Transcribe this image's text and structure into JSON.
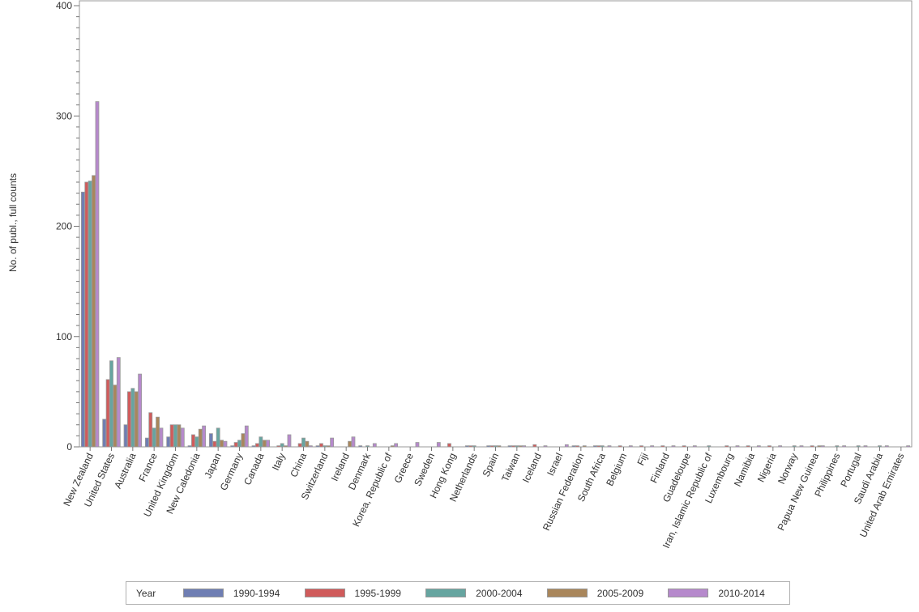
{
  "chart_data": {
    "type": "bar",
    "title": "",
    "xlabel": "",
    "ylabel": "No. of publ., full counts",
    "ylim": [
      0,
      400
    ],
    "yticks": [
      "0",
      "100",
      "200",
      "300",
      "400"
    ],
    "grid": false,
    "legend_title": "Year",
    "legend_position": "bottom",
    "categories": [
      "New Zealand",
      "United States",
      "Australia",
      "France",
      "United Kingdom",
      "New Caledonia",
      "Japan",
      "Germany",
      "Canada",
      "Italy",
      "China",
      "Switzerland",
      "Ireland",
      "Denmark",
      "Korea, Republic of",
      "Greece",
      "Sweden",
      "Hong Kong",
      "Netherlands",
      "Spain",
      "Taiwan",
      "Iceland",
      "Israel",
      "Russian Federation",
      "South Africa",
      "Belgium",
      "Fiji",
      "Finland",
      "Guadeloupe",
      "Iran, Islamic Republic of",
      "Luxembourg",
      "Namibia",
      "Nigeria",
      "Norway",
      "Papua New Guinea",
      "Philippines",
      "Portugal",
      "Saudi Arabia",
      "United Arab Emirates"
    ],
    "series": [
      {
        "name": "1990-1994",
        "color": "#6f7eb3",
        "values": [
          231,
          25,
          20,
          8,
          9,
          1,
          12,
          1,
          1,
          0,
          0,
          1,
          0,
          1,
          0,
          0,
          0,
          0,
          1,
          1,
          1,
          0,
          0,
          1,
          1,
          0,
          0,
          0,
          0,
          0,
          0,
          0,
          0,
          0,
          0,
          0,
          0,
          0,
          0
        ]
      },
      {
        "name": "1995-1999",
        "color": "#d05b5b",
        "values": [
          240,
          61,
          50,
          31,
          20,
          11,
          5,
          4,
          3,
          1,
          3,
          3,
          0,
          0,
          0,
          0,
          0,
          3,
          1,
          1,
          1,
          2,
          0,
          1,
          1,
          1,
          1,
          1,
          1,
          0,
          1,
          1,
          1,
          0,
          1,
          0,
          0,
          0,
          0
        ]
      },
      {
        "name": "2000-2004",
        "color": "#66a5a0",
        "values": [
          241,
          78,
          53,
          17,
          20,
          9,
          17,
          6,
          9,
          3,
          8,
          1,
          0,
          1,
          0,
          0,
          0,
          0,
          1,
          1,
          1,
          0,
          0,
          0,
          1,
          0,
          0,
          0,
          0,
          1,
          0,
          0,
          0,
          1,
          0,
          1,
          1,
          1,
          0
        ]
      },
      {
        "name": "2005-2009",
        "color": "#a9865b",
        "values": [
          246,
          56,
          50,
          27,
          20,
          16,
          6,
          12,
          6,
          1,
          5,
          1,
          5,
          0,
          1,
          0,
          0,
          0,
          0,
          1,
          1,
          0,
          0,
          1,
          0,
          0,
          0,
          0,
          0,
          0,
          0,
          0,
          0,
          0,
          1,
          0,
          0,
          0,
          0
        ]
      },
      {
        "name": "2010-2014",
        "color": "#b689cc",
        "values": [
          313,
          81,
          66,
          17,
          17,
          19,
          5,
          19,
          6,
          11,
          1,
          8,
          9,
          3,
          3,
          4,
          4,
          0,
          0,
          0,
          1,
          1,
          2,
          0,
          1,
          1,
          1,
          1,
          1,
          0,
          1,
          1,
          1,
          1,
          1,
          1,
          1,
          1,
          1
        ]
      }
    ]
  }
}
